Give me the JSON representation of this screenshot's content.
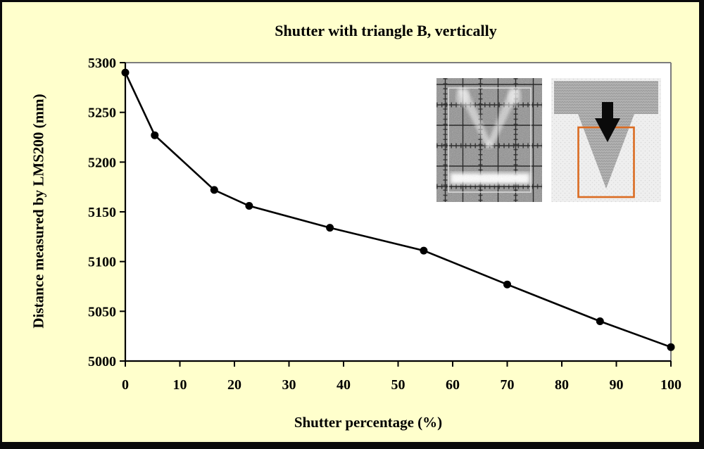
{
  "frame": {
    "background": "#FFFFCC",
    "border_color": "#0a0a0a"
  },
  "chart_data": {
    "type": "line",
    "title": "Shutter with triangle B, vertically",
    "xlabel": "Shutter percentage  (%)",
    "ylabel": "Distance measured by LMS200 (mm)",
    "x": [
      0,
      5.4,
      16.3,
      22.7,
      37.5,
      54.7,
      70,
      87,
      100
    ],
    "y": [
      5290,
      5227,
      5172,
      5156,
      5134,
      5111,
      5077,
      5040,
      5014
    ],
    "xlim": [
      0,
      100
    ],
    "ylim": [
      5000,
      5300
    ],
    "xticks": [
      0,
      10,
      20,
      30,
      40,
      50,
      60,
      70,
      80,
      90,
      100
    ],
    "yticks": [
      5000,
      5050,
      5100,
      5150,
      5200,
      5250,
      5300
    ],
    "grid": false,
    "legend": null,
    "line_color": "#000000",
    "marker": "filled-circle",
    "marker_radius": 5.5,
    "plot_bg": "#FFFFFF",
    "plot_border_color": "#7d7d7d",
    "axis_color": "#000000"
  },
  "insets": {
    "scan_image": {
      "name": "sensor-scan-image",
      "background": "#8f8f8f",
      "grid_color": "#1c1c1c",
      "highlight_color": "#ffffff"
    },
    "diagram": {
      "name": "triangle-target-diagram",
      "background": "#efefef",
      "shape_color": "#b0b0b0",
      "arrow_color": "#0a0a0a",
      "box_color": "#DB6B21"
    }
  }
}
